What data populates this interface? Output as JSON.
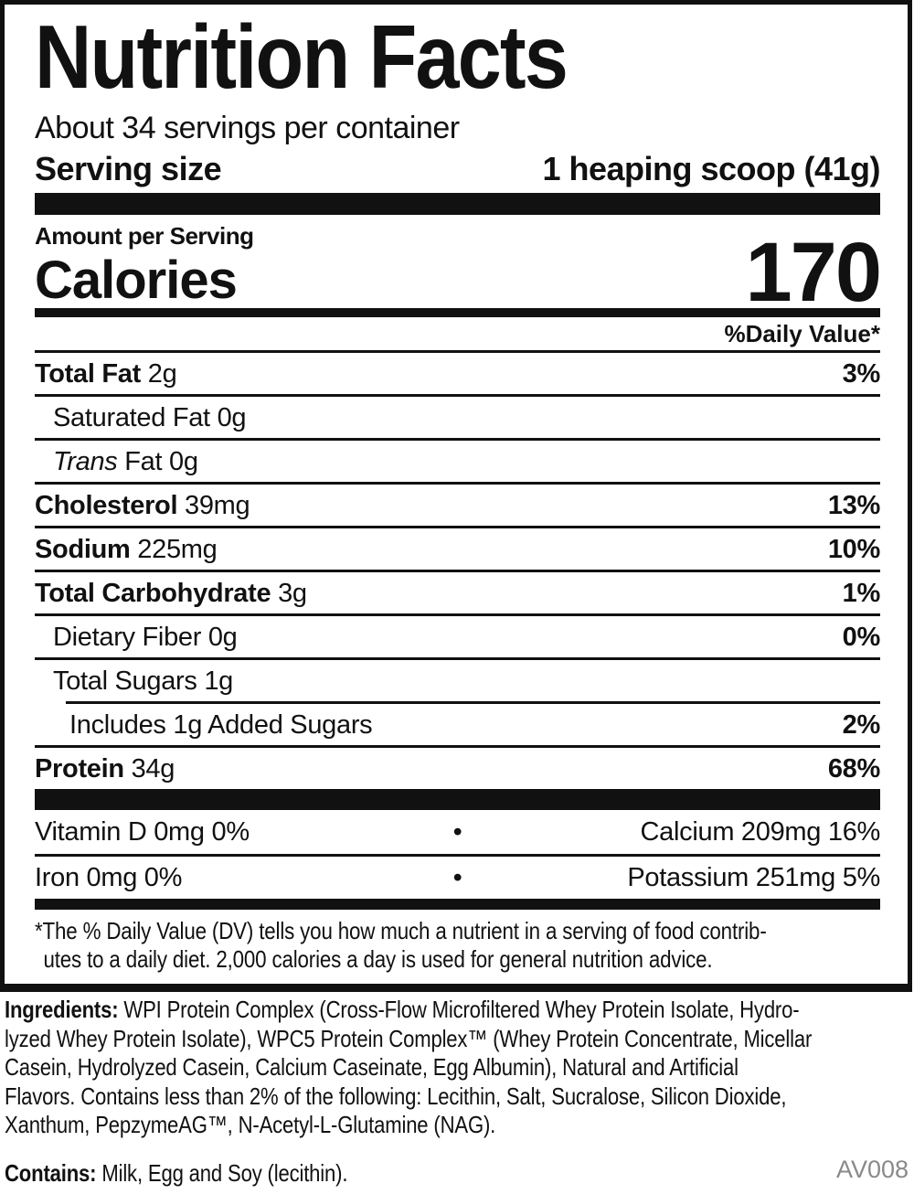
{
  "nutrition_label": {
    "title": "Nutrition Facts",
    "servings_per_container": "About 34 servings per container",
    "serving_size": {
      "label": "Serving size",
      "value": "1 heaping scoop (41g)"
    },
    "amount_per_serving": "Amount per Serving",
    "calories": {
      "label": "Calories",
      "value": "170"
    },
    "daily_value_header": "%Daily Value*",
    "nutrient_rows": [
      {
        "segments": [
          {
            "text": "Total Fat",
            "bold": true
          },
          {
            "text": " 2g"
          }
        ],
        "dv": "3%",
        "indent": 0
      },
      {
        "segments": [
          {
            "text": "Saturated Fat 0g"
          }
        ],
        "dv": "",
        "indent": 1
      },
      {
        "segments": [
          {
            "text": "Trans",
            "italic": true
          },
          {
            "text": " Fat 0g"
          }
        ],
        "dv": "",
        "indent": 1
      },
      {
        "segments": [
          {
            "text": "Cholesterol",
            "bold": true
          },
          {
            "text": " 39mg"
          }
        ],
        "dv": "13%",
        "indent": 0
      },
      {
        "segments": [
          {
            "text": "Sodium",
            "bold": true
          },
          {
            "text": " 225mg"
          }
        ],
        "dv": "10%",
        "indent": 0
      },
      {
        "segments": [
          {
            "text": "Total Carbohydrate",
            "bold": true
          },
          {
            "text": " 3g"
          }
        ],
        "dv": "1%",
        "indent": 0
      },
      {
        "segments": [
          {
            "text": "Dietary Fiber 0g"
          }
        ],
        "dv": "0%",
        "indent": 1
      },
      {
        "segments": [
          {
            "text": "Total Sugars 1g"
          }
        ],
        "dv": "",
        "indent": 1
      },
      {
        "segments": [
          {
            "text": "Includes 1g Added Sugars"
          }
        ],
        "dv": "2%",
        "indent": 2
      },
      {
        "segments": [
          {
            "text": "Protein",
            "bold": true
          },
          {
            "text": " 34g"
          }
        ],
        "dv": "68%",
        "indent": 0
      }
    ],
    "micronutrients": {
      "bullet": "•",
      "rows": [
        {
          "left": "Vitamin D 0mg 0%",
          "right": "Calcium 209mg 16%"
        },
        {
          "left": "Iron 0mg 0%",
          "right": "Potassium 251mg 5%"
        }
      ]
    },
    "footnote_lines": [
      "*The % Daily Value (DV) tells you how much a nutrient in a serving of food contrib-",
      "utes to a daily diet. 2,000 calories a day is used for general nutrition advice."
    ]
  },
  "ingredients": {
    "label": "Ingredients:",
    "lines": [
      "WPI Protein Complex (Cross-Flow Microfiltered Whey Protein Isolate, Hydro-",
      "lyzed Whey Protein Isolate), WPC5 Protein Complex™ (Whey Protein Concentrate, Micellar",
      "Casein, Hydrolyzed Casein, Calcium Caseinate, Egg Albumin), Natural and Artificial",
      "Flavors. Contains less than 2% of the following: Lecithin, Salt, Sucralose, Silicon Dioxide,",
      "Xanthum, PepzymeAG™, N-Acetyl-L-Glutamine (NAG)."
    ]
  },
  "contains": {
    "label": "Contains:",
    "text": "Milk, Egg and Soy (lecithin)."
  },
  "product_code": "AV008",
  "colors": {
    "ink": "#111111",
    "muted": "#8a8a8a",
    "background": "#ffffff"
  }
}
